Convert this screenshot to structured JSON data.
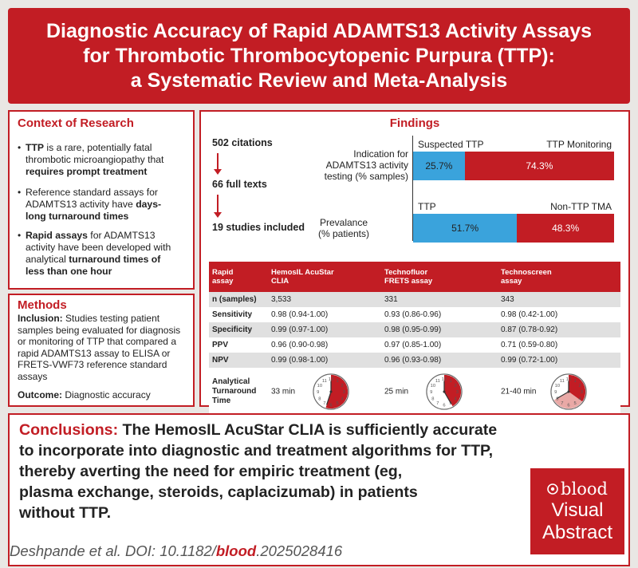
{
  "title": {
    "line1": "Diagnostic Accuracy of Rapid ADAMTS13 Activity Assays",
    "line2": "for Thrombotic Thrombocytopenic Purpura (TTP):",
    "line3": "a Systematic Review and Meta-Analysis"
  },
  "context": {
    "heading": "Context of Research",
    "b1": {
      "p1": "TTP",
      "p2": " is a rare, potentially fatal",
      "p3": "thrombotic microangiopathy that",
      "p4": "requires prompt treatment"
    },
    "b2": {
      "p1": "Reference standard assays for",
      "p2": "ADAMTS13 activity have ",
      "p3": "days-",
      "p4": "long turnaround times"
    },
    "b3": {
      "p1": "Rapid assays",
      "p2": " for ADAMTS13",
      "p3": "activity have been developed with",
      "p4": "analytical ",
      "p5": "turnaround times of",
      "p6": "less than one hour"
    }
  },
  "methods": {
    "heading": "Methods",
    "inclusion_label": "Inclusion:",
    "inclusion_l1": " Studies testing patient",
    "inclusion_l2": "samples being evaluated for diagnosis",
    "inclusion_l3": "or monitoring of TTP that compared a",
    "inclusion_l4": "rapid ADAMTS13 assay to ELISA or",
    "inclusion_l5": "FRETS-VWF73 reference standard",
    "inclusion_l6": "assays",
    "outcome_label": "Outcome:",
    "outcome_text": " Diagnostic accuracy"
  },
  "findings": {
    "heading": "Findings",
    "flow": [
      "502 citations",
      "66 full texts",
      "19 studies included"
    ],
    "indication": {
      "label_l1": "Indication for",
      "label_l2": "ADAMTS13 activity",
      "label_l3": "testing (% samples)",
      "left_label": "Suspected TTP",
      "right_label": "TTP Monitoring",
      "left_value": "25.7%",
      "right_value": "74.3%",
      "left_pct": 25.7
    },
    "prevalence": {
      "label_l1": "Prevalance",
      "label_l2": "(% patients)",
      "left_label": "TTP",
      "right_label": "Non-TTP TMA",
      "left_value": "51.7%",
      "right_value": "48.3%",
      "left_pct": 51.7
    }
  },
  "table": {
    "headers": [
      {
        "l1": "Rapid",
        "l2": "assay"
      },
      {
        "l1": "HemosIL AcuStar",
        "l2": "CLIA"
      },
      {
        "l1": "Technofluor",
        "l2": "FRETS assay"
      },
      {
        "l1": "Technoscreen",
        "l2": "assay"
      }
    ],
    "rows": [
      {
        "label": "n (samples)",
        "values": [
          "3,533",
          "331",
          "343"
        ]
      },
      {
        "label": "Sensitivity",
        "values": [
          "0.98 (0.94-1.00)",
          "0.93 (0.86-0.96)",
          "0.98 (0.42-1.00)"
        ]
      },
      {
        "label": "Specificity",
        "values": [
          "0.99 (0.97-1.00)",
          "0.98 (0.95-0.99)",
          "0.87 (0.78-0.92)"
        ]
      },
      {
        "label": "PPV",
        "values": [
          "0.96 (0.90-0.98)",
          "0.97 (0.85-1.00)",
          "0.71 (0.59-0.80)"
        ]
      },
      {
        "label": "NPV",
        "values": [
          "0.99 (0.98-1.00)",
          "0.96 (0.93-0.98)",
          "0.99 (0.72-1.00)"
        ]
      }
    ],
    "tat": {
      "label_l1": "Analytical",
      "label_l2": "Turnaround",
      "label_l3": "Time",
      "values": [
        "33 min",
        "25 min",
        "21-40 min"
      ],
      "minutes_start": [
        33,
        25,
        21
      ],
      "minutes_end": [
        33,
        25,
        40
      ]
    }
  },
  "conclusion": {
    "label": "Conclusions:",
    "l1": " The HemosIL AcuStar CLIA is sufficiently accurate",
    "l2": "to incorporate into diagnostic and treatment algorithms for TTP,",
    "l3": "thereby averting the need for empiric treatment (eg,",
    "l4": "plasma exchange, steroids, caplacizumab) in patients",
    "l5": "without TTP."
  },
  "citation": {
    "prefix": "Deshpande et al. DOI: 10.1182/",
    "journal": "blood",
    "suffix": ".2025028416"
  },
  "logo": {
    "brand": "blood",
    "line1": "Visual",
    "line2": "Abstract"
  },
  "colors": {
    "brand_red": "#c21d24",
    "accent_blue": "#3aa3dc"
  }
}
